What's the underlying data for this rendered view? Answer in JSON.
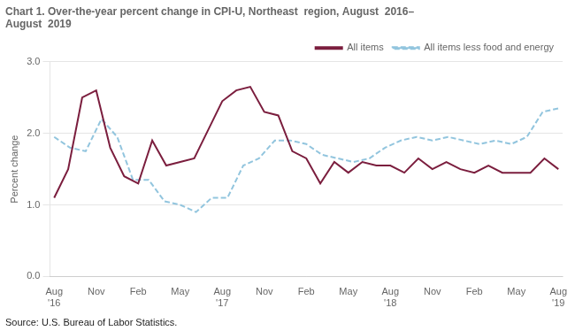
{
  "chart_data": {
    "type": "line",
    "title": "Chart 1. Over-the-year percent change in CPI-U, Northeast  region, August  2016–\nAugust  2019",
    "ylabel": "Percent change",
    "source": "Source: U.S. Bureau of Labor Statistics.",
    "xlim": [
      -0.3,
      36.3
    ],
    "xticks": [
      {
        "value": 0,
        "label": "Aug\n'16"
      },
      {
        "value": 3,
        "label": "Nov"
      },
      {
        "value": 6,
        "label": "Feb"
      },
      {
        "value": 9,
        "label": "May"
      },
      {
        "value": 12,
        "label": "Aug\n'17"
      },
      {
        "value": 15,
        "label": "Nov"
      },
      {
        "value": 18,
        "label": "Feb"
      },
      {
        "value": 21,
        "label": "May"
      },
      {
        "value": 24,
        "label": "Aug\n'18"
      },
      {
        "value": 27,
        "label": "Nov"
      },
      {
        "value": 30,
        "label": "Feb"
      },
      {
        "value": 33,
        "label": "May"
      },
      {
        "value": 36,
        "label": "Aug\n'19"
      }
    ],
    "ylim": [
      0.0,
      3.0
    ],
    "yticks": [
      {
        "value": 0,
        "label": "0.0"
      },
      {
        "value": 1,
        "label": "1.0"
      },
      {
        "value": 2,
        "label": "2.0"
      },
      {
        "value": 3,
        "label": "3.0"
      }
    ],
    "grid": "y",
    "legend": "top right",
    "series": [
      {
        "name": "All items",
        "color": "#7B1E3E",
        "line_style": "solid",
        "x": [
          0,
          1,
          2,
          3,
          4,
          5,
          6,
          7,
          8,
          9,
          10,
          11,
          12,
          13,
          14,
          15,
          16,
          17,
          18,
          19,
          20,
          21,
          22,
          23,
          24,
          25,
          26,
          27,
          28,
          29,
          30,
          31,
          32,
          33,
          34,
          35,
          36
        ],
        "values": [
          1.1,
          1.5,
          2.5,
          2.6,
          1.8,
          1.4,
          1.3,
          1.9,
          1.55,
          1.6,
          1.65,
          2.05,
          2.45,
          2.6,
          2.65,
          2.3,
          2.25,
          1.75,
          1.65,
          1.3,
          1.6,
          1.45,
          1.6,
          1.55,
          1.55,
          1.45,
          1.65,
          1.5,
          1.6,
          1.5,
          1.45,
          1.55,
          1.45,
          1.45,
          1.45,
          1.65,
          1.5
        ]
      },
      {
        "name": "All items less food and energy",
        "color": "#92C5DE",
        "line_style": "dashed",
        "x": [
          0,
          1.125,
          2.25,
          3.375,
          4.5,
          5.625,
          6.75,
          7.875,
          9,
          10.125,
          11.25,
          12.375,
          13.5,
          14.625,
          15.75,
          16.875,
          18,
          19.125,
          20.25,
          21.375,
          22.5,
          23.625,
          24.75,
          25.875,
          27,
          28.125,
          29.25,
          30.375,
          31.5,
          32.625,
          33.75,
          34.875,
          36
        ],
        "values": [
          1.95,
          1.8,
          1.75,
          2.2,
          1.95,
          1.35,
          1.35,
          1.05,
          1.0,
          0.9,
          1.1,
          1.1,
          1.55,
          1.65,
          1.9,
          1.9,
          1.85,
          1.7,
          1.65,
          1.6,
          1.65,
          1.8,
          1.9,
          1.95,
          1.9,
          1.95,
          1.9,
          1.85,
          1.9,
          1.85,
          1.95,
          2.3,
          2.35
        ]
      }
    ]
  }
}
